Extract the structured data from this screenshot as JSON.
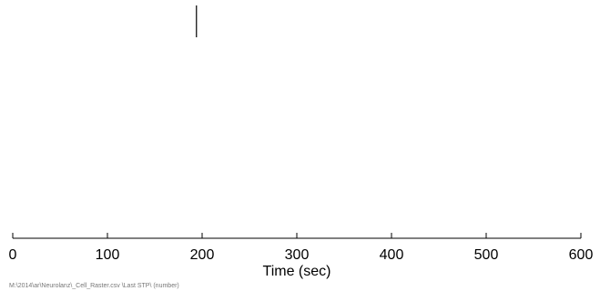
{
  "chart_data": {
    "type": "scatter",
    "title": "",
    "xlabel": "Time (sec)",
    "ylabel": "",
    "xlim": [
      0,
      600
    ],
    "xticks": [
      0,
      100,
      200,
      300,
      400,
      500,
      600
    ],
    "xtick_labels": [
      "0",
      "100",
      "200",
      "300",
      "400",
      "500",
      "600"
    ],
    "grid": false,
    "legend": "none",
    "series": [
      {
        "marker": "vertical-tick",
        "x": [
          194
        ],
        "color": "#000000"
      }
    ]
  },
  "footer": {
    "note": "M:\\2014\\ar\\Neurolanz\\_Cell_Raster.csv \\Last STP\\ (number)"
  }
}
